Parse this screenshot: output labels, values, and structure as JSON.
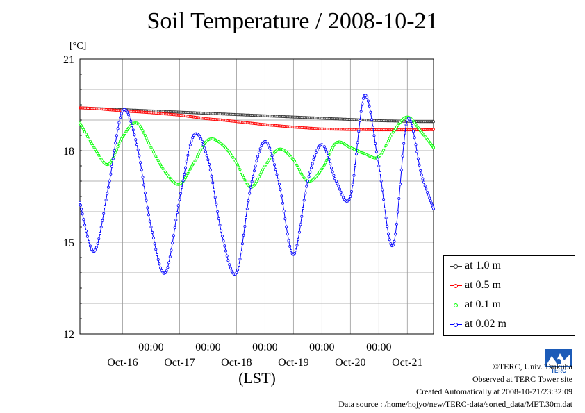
{
  "title": "Soil Temperature / 2008-10-21",
  "chart_data": {
    "type": "line",
    "title": "Soil Temperature / 2008-10-21",
    "ylabel": "[°C]",
    "xlabel": "(LST)",
    "ylim": [
      12,
      21
    ],
    "y_ticks": [
      "21",
      "18",
      "15",
      "12"
    ],
    "x_tick_labels": [
      "00:00",
      "00:00",
      "00:00",
      "00:00",
      "00:00"
    ],
    "date_labels": [
      "Oct-16",
      "Oct-17",
      "Oct-18",
      "Oct-19",
      "Oct-20",
      "Oct-21"
    ],
    "x_unit": "day from Oct-15 00:00",
    "x": [
      0.75,
      1.0,
      1.25,
      1.5,
      1.75,
      2.0,
      2.25,
      2.5,
      2.75,
      3.0,
      3.25,
      3.5,
      3.75,
      4.0,
      4.25,
      4.5,
      4.75,
      5.0,
      5.25,
      5.5,
      5.75,
      6.0,
      6.25,
      6.5,
      6.75,
      6.96
    ],
    "series": [
      {
        "name": "at 1.0 m",
        "color": "#333333",
        "values": [
          19.4,
          19.38,
          19.36,
          19.34,
          19.32,
          19.3,
          19.28,
          19.26,
          19.24,
          19.22,
          19.2,
          19.18,
          19.16,
          19.14,
          19.12,
          19.1,
          19.08,
          19.06,
          19.04,
          19.02,
          19.0,
          18.98,
          18.97,
          18.96,
          18.95,
          18.95
        ]
      },
      {
        "name": "at 0.5 m",
        "color": "#ff0000",
        "values": [
          19.4,
          19.38,
          19.34,
          19.3,
          19.27,
          19.24,
          19.2,
          19.16,
          19.1,
          19.04,
          19.0,
          18.95,
          18.9,
          18.85,
          18.81,
          18.77,
          18.74,
          18.71,
          18.7,
          18.69,
          18.69,
          18.68,
          18.68,
          18.68,
          18.68,
          18.69
        ]
      },
      {
        "name": "at 0.1 m",
        "color": "#00ff00",
        "values": [
          18.9,
          18.1,
          17.55,
          18.45,
          18.9,
          18.1,
          17.3,
          16.9,
          17.6,
          18.35,
          18.2,
          17.6,
          16.8,
          17.5,
          18.05,
          17.7,
          17.0,
          17.4,
          18.25,
          18.1,
          17.9,
          17.8,
          18.6,
          19.1,
          18.6,
          18.1
        ]
      },
      {
        "name": "at 0.02 m",
        "color": "#0000ff",
        "values": [
          16.3,
          14.7,
          16.8,
          19.3,
          18.2,
          15.5,
          14.0,
          16.4,
          18.5,
          17.7,
          15.2,
          14.0,
          16.8,
          18.3,
          16.9,
          14.6,
          17.0,
          18.2,
          17.0,
          16.5,
          19.8,
          17.5,
          14.9,
          19.0,
          17.2,
          16.1
        ]
      }
    ],
    "grid": true,
    "legend": "right"
  },
  "footer": {
    "copyright": "©TERC, Univ. Tsukuba",
    "site": "Observed at TERC Tower site",
    "created": "Created Automatically at 2008-10-21/23:32:09",
    "source": "Data source : /home/hojyo/new/TERC-data/sorted_data/MET.30m.dat"
  },
  "logo_text": "TERC"
}
